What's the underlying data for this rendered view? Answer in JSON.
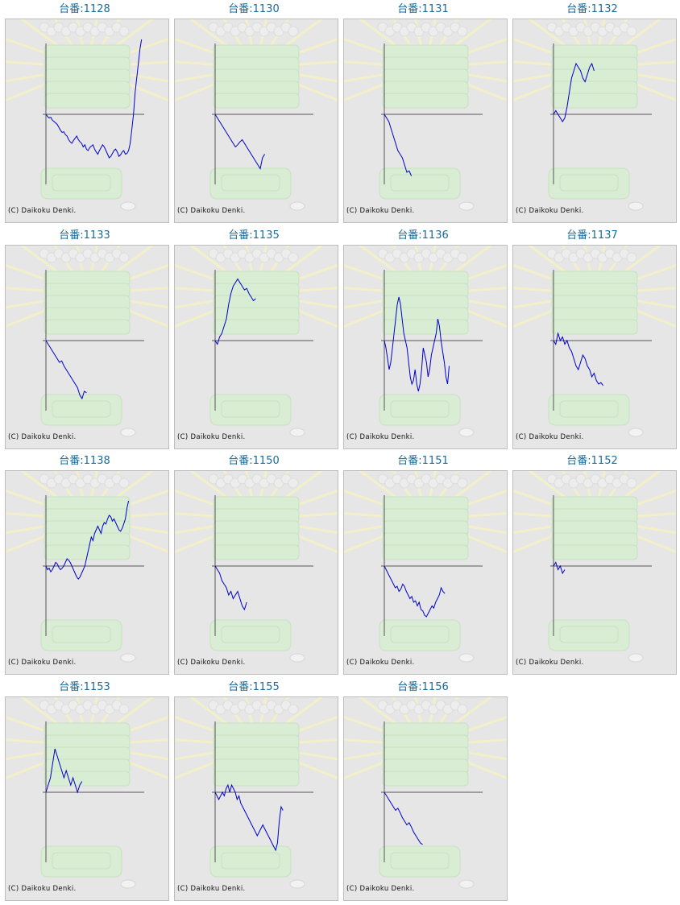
{
  "colors": {
    "title": "#1a6a9a",
    "line": "#0000cc",
    "axis": "#555555",
    "panel_bg": "#e6e6e6"
  },
  "copyright": "(C) Daikoku Denki.",
  "chart_data": [
    {
      "type": "line",
      "title": "台番:1128",
      "y": [
        0,
        -3,
        -5,
        -4,
        -8,
        -10,
        -12,
        -14,
        -18,
        -22,
        -25,
        -24,
        -28,
        -30,
        -35,
        -38,
        -40,
        -36,
        -33,
        -30,
        -35,
        -38,
        -40,
        -45,
        -42,
        -48,
        -50,
        -46,
        -44,
        -42,
        -48,
        -52,
        -55,
        -50,
        -46,
        -42,
        -45,
        -50,
        -55,
        -60,
        -58,
        -54,
        -50,
        -48,
        -52,
        -58,
        -56,
        -52,
        -50,
        -55,
        -54,
        -50,
        -40,
        -20,
        0,
        30,
        50,
        70,
        90,
        110
      ]
    },
    {
      "type": "line",
      "title": "台番:1130",
      "y": [
        0,
        -5,
        -10,
        -15,
        -20,
        -25,
        -30,
        -35,
        -40,
        -45,
        -42,
        -38,
        -35,
        -40,
        -45,
        -50,
        -55,
        -60,
        -65,
        -70,
        -75,
        -60,
        -55
      ]
    },
    {
      "type": "line",
      "title": "台番:1131",
      "y": [
        0,
        -5,
        -10,
        -20,
        -30,
        -40,
        -50,
        -55,
        -60,
        -70,
        -80,
        -78,
        -85
      ]
    },
    {
      "type": "line",
      "title": "台番:1132",
      "y": [
        0,
        5,
        0,
        -5,
        -10,
        -5,
        10,
        30,
        50,
        60,
        70,
        65,
        60,
        50,
        45,
        55,
        65,
        70,
        60
      ]
    },
    {
      "type": "line",
      "title": "台番:1133",
      "y": [
        0,
        -5,
        -10,
        -15,
        -20,
        -25,
        -30,
        -28,
        -35,
        -40,
        -45,
        -50,
        -55,
        -60,
        -65,
        -75,
        -80,
        -70,
        -72
      ]
    },
    {
      "type": "line",
      "title": "台番:1135",
      "y": [
        0,
        -5,
        5,
        10,
        20,
        30,
        50,
        65,
        75,
        80,
        85,
        80,
        75,
        70,
        72,
        65,
        60,
        55,
        58
      ]
    },
    {
      "type": "line",
      "title": "台番:1136",
      "y": [
        0,
        -10,
        -25,
        -40,
        -30,
        -10,
        10,
        30,
        50,
        60,
        50,
        30,
        10,
        0,
        -10,
        -30,
        -50,
        -60,
        -55,
        -40,
        -60,
        -70,
        -60,
        -40,
        -10,
        -20,
        -30,
        -50,
        -40,
        -20,
        -10,
        0,
        10,
        30,
        20,
        0,
        -15,
        -30,
        -50,
        -60,
        -35
      ]
    },
    {
      "type": "line",
      "title": "台番:1137",
      "y": [
        0,
        -5,
        10,
        0,
        5,
        -5,
        0,
        -10,
        -15,
        -25,
        -35,
        -40,
        -30,
        -20,
        -25,
        -35,
        -40,
        -50,
        -45,
        -55,
        -60,
        -58,
        -62
      ]
    },
    {
      "type": "line",
      "title": "台番:1138",
      "y": [
        0,
        -5,
        -3,
        -8,
        -5,
        0,
        5,
        3,
        -2,
        -5,
        -3,
        0,
        5,
        10,
        8,
        5,
        0,
        -5,
        -10,
        -15,
        -18,
        -15,
        -10,
        -5,
        0,
        10,
        20,
        30,
        40,
        35,
        45,
        50,
        55,
        50,
        45,
        55,
        60,
        58,
        65,
        70,
        68,
        62,
        65,
        60,
        55,
        50,
        48,
        52,
        58,
        65,
        80,
        90
      ]
    },
    {
      "type": "line",
      "title": "台番:1150",
      "y": [
        0,
        -5,
        -10,
        -20,
        -25,
        -30,
        -40,
        -35,
        -45,
        -40,
        -35,
        -45,
        -55,
        -60,
        -50
      ]
    },
    {
      "type": "line",
      "title": "台番:1151",
      "y": [
        0,
        -5,
        -10,
        -15,
        -20,
        -25,
        -30,
        -28,
        -35,
        -32,
        -25,
        -28,
        -35,
        -40,
        -45,
        -42,
        -50,
        -48,
        -55,
        -50,
        -60,
        -62,
        -68,
        -70,
        -65,
        -60,
        -55,
        -58,
        -50,
        -45,
        -40,
        -30,
        -35,
        -38
      ]
    },
    {
      "type": "line",
      "title": "台番:1152",
      "y": [
        0,
        5,
        -5,
        0,
        -10,
        -5
      ]
    },
    {
      "type": "line",
      "title": "台番:1153",
      "y": [
        0,
        10,
        20,
        40,
        60,
        50,
        40,
        30,
        20,
        30,
        20,
        10,
        20,
        10,
        0,
        10,
        15
      ]
    },
    {
      "type": "line",
      "title": "台番:1155",
      "y": [
        0,
        -5,
        -10,
        -5,
        0,
        -5,
        5,
        10,
        0,
        10,
        5,
        0,
        -10,
        -5,
        -15,
        -20,
        -25,
        -30,
        -35,
        -40,
        -45,
        -50,
        -55,
        -60,
        -55,
        -50,
        -45,
        -50,
        -55,
        -60,
        -65,
        -70,
        -75,
        -80,
        -70,
        -40,
        -20,
        -25
      ]
    },
    {
      "type": "line",
      "title": "台番:1156",
      "y": [
        0,
        -5,
        -10,
        -15,
        -20,
        -25,
        -22,
        -28,
        -35,
        -40,
        -45,
        -42,
        -48,
        -55,
        -60,
        -65,
        -70,
        -72
      ]
    }
  ]
}
